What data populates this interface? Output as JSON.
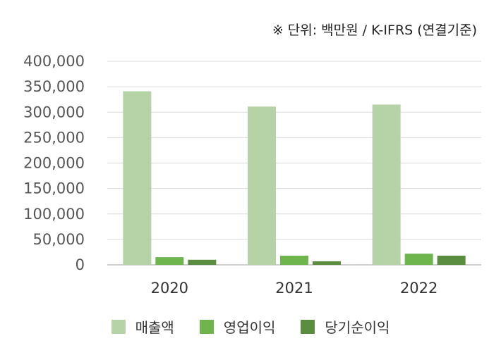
{
  "unit_note": "※ 단위: 백만원 / K-IFRS (연결기준)",
  "colors": {
    "revenue": "#b5d3a7",
    "operating_income": "#6eb54e",
    "net_income": "#5a8d3f",
    "grid": "#d9d9d9",
    "axis_text": "#555555"
  },
  "chart_data": {
    "type": "bar",
    "categories": [
      "2020",
      "2021",
      "2022"
    ],
    "series": [
      {
        "name": "매출액",
        "values": [
          341000,
          311000,
          315000
        ]
      },
      {
        "name": "영업이익",
        "values": [
          15000,
          18000,
          22000
        ]
      },
      {
        "name": "당기순이익",
        "values": [
          10000,
          7000,
          18000
        ]
      }
    ],
    "yticks": [
      "400,000",
      "350,000",
      "300,000",
      "250,000",
      "200,000",
      "150,000",
      "100,000",
      "50,000",
      "0"
    ],
    "ylim": [
      0,
      400000
    ],
    "grid": true,
    "legend": "bottom"
  }
}
